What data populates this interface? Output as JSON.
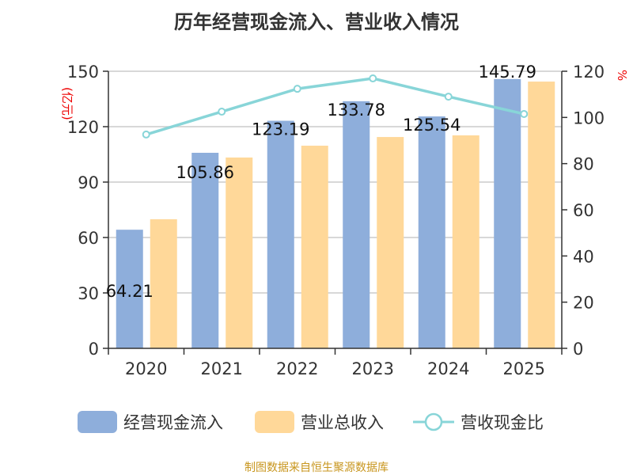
{
  "chart_data": {
    "type": "bar",
    "title": "历年经营现金流入、营业收入情况",
    "categories": [
      "2020",
      "2021",
      "2022",
      "2023",
      "2024",
      "2025"
    ],
    "ylabel_left": "(亿元)",
    "ylabel_right": "%",
    "ylim_left": [
      0,
      150
    ],
    "yticks_left": [
      0,
      30,
      60,
      90,
      120,
      150
    ],
    "ylim_right": [
      0,
      120
    ],
    "yticks_right": [
      0,
      20,
      40,
      60,
      80,
      100,
      120
    ],
    "grid": true,
    "legend_position": "bottom",
    "series": [
      {
        "name": "经营现金流入",
        "type": "bar",
        "axis": "left",
        "color": "#8eaedb",
        "values": [
          64.21,
          105.86,
          123.19,
          133.78,
          125.54,
          145.79
        ],
        "labels": [
          "64.21",
          "105.86",
          "123.19",
          "133.78",
          "125.54",
          "145.79"
        ]
      },
      {
        "name": "营业总收入",
        "type": "bar",
        "axis": "left",
        "color": "#ffd899",
        "values": [
          69.9,
          103.3,
          109.7,
          114.4,
          115.3,
          144.4
        ]
      },
      {
        "name": "营收现金比",
        "type": "line",
        "axis": "right",
        "color": "#88d5d8",
        "values": [
          92.6,
          102.5,
          112.4,
          116.9,
          109.0,
          101.5
        ]
      }
    ]
  },
  "source": "制图数据来自恒生聚源数据库"
}
